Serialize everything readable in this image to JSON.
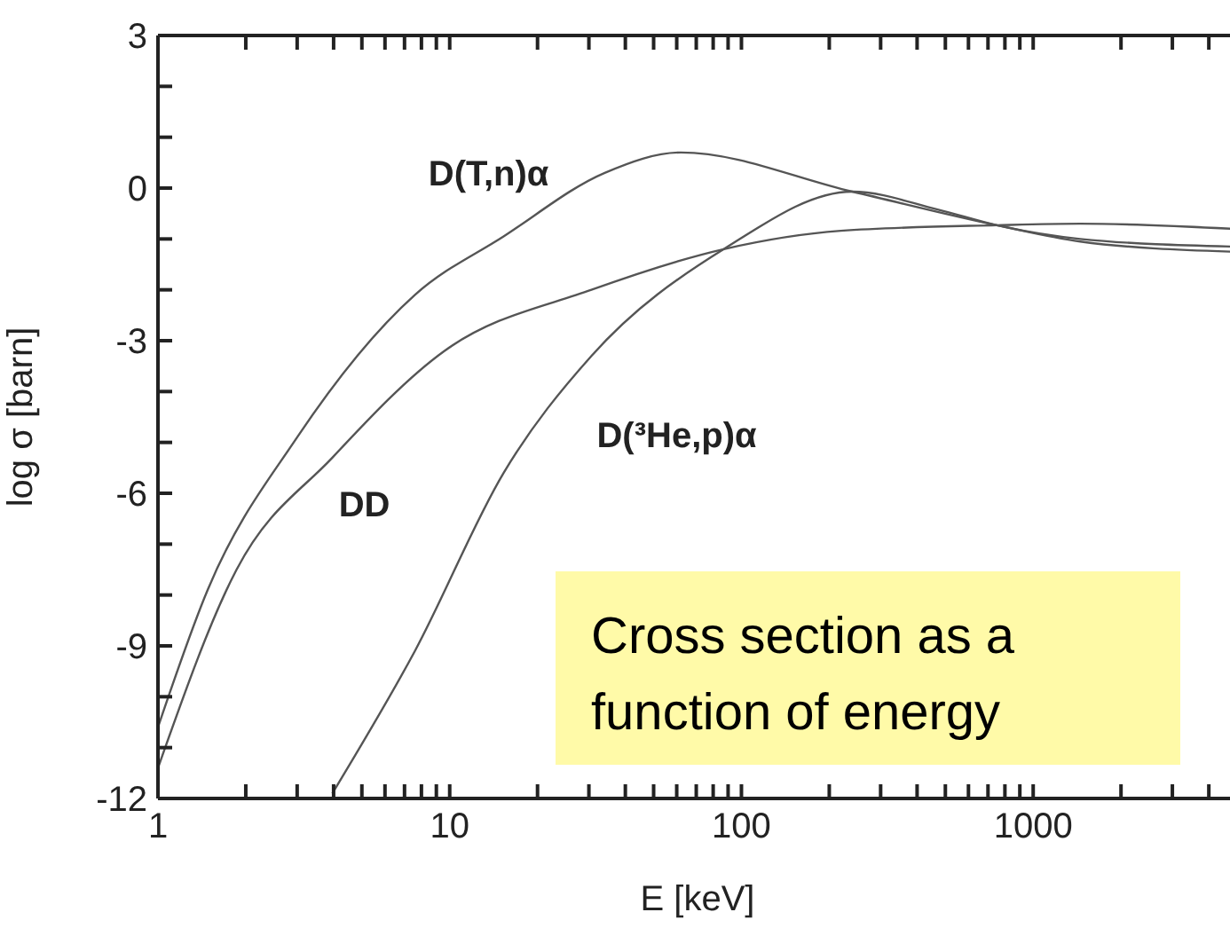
{
  "chart_data": {
    "type": "line",
    "xlabel": "E [keV]",
    "ylabel": "log σ [barn]",
    "log": "x",
    "marker": "none",
    "xlim": [
      1,
      5000
    ],
    "ylim": [
      -12,
      3
    ],
    "xticks": [
      1,
      {
        "value": 2,
        "label": null
      },
      {
        "value": 3,
        "label": null
      },
      {
        "value": 4,
        "label": null
      },
      {
        "value": 5,
        "label": null
      },
      {
        "value": 6,
        "label": null
      },
      {
        "value": 7,
        "label": null
      },
      {
        "value": 8,
        "label": null
      },
      {
        "value": 9,
        "label": null
      },
      10,
      {
        "value": 20,
        "label": null
      },
      {
        "value": 30,
        "label": null
      },
      {
        "value": 40,
        "label": null
      },
      {
        "value": 50,
        "label": null
      },
      {
        "value": 60,
        "label": null
      },
      {
        "value": 70,
        "label": null
      },
      {
        "value": 80,
        "label": null
      },
      {
        "value": 90,
        "label": null
      },
      100,
      {
        "value": 200,
        "label": null
      },
      {
        "value": 300,
        "label": null
      },
      {
        "value": 400,
        "label": null
      },
      {
        "value": 500,
        "label": null
      },
      {
        "value": 600,
        "label": null
      },
      {
        "value": 700,
        "label": null
      },
      {
        "value": 800,
        "label": null
      },
      {
        "value": 900,
        "label": null
      },
      1000,
      {
        "value": 2000,
        "label": null
      },
      {
        "value": 3000,
        "label": null
      },
      {
        "value": 4000,
        "label": null
      }
    ],
    "yticks": [
      -12,
      {
        "value": -11,
        "label": null
      },
      {
        "value": -10,
        "label": null
      },
      -9,
      {
        "value": -8,
        "label": null
      },
      {
        "value": -7,
        "label": null
      },
      -6,
      {
        "value": -5,
        "label": null
      },
      {
        "value": -4,
        "label": null
      },
      -3,
      {
        "value": -2,
        "label": null
      },
      {
        "value": -1,
        "label": null
      },
      0,
      {
        "value": 1,
        "label": null
      },
      {
        "value": 2,
        "label": null
      },
      3
    ],
    "series": [
      {
        "name": "D(T,n)α",
        "color": "#555555",
        "x": [
          1,
          1.48,
          3,
          7.6,
          15.3,
          34,
          62,
          240,
          750,
          1450,
          4800
        ],
        "values": [
          -10.6,
          -7.9,
          -4.9,
          -2.1,
          -0.95,
          0.3,
          0.7,
          -0.07,
          -0.73,
          -1.05,
          -1.25
        ]
      },
      {
        "name": "DD",
        "color": "#555555",
        "x": [
          1,
          1.86,
          3.96,
          9.6,
          30.6,
          87,
          219,
          750,
          1450,
          4800
        ],
        "values": [
          -11.4,
          -7.5,
          -5.3,
          -3.2,
          -2.0,
          -1.2,
          -0.84,
          -0.73,
          -0.7,
          -0.8
        ]
      },
      {
        "name": "D(³He,p)α",
        "color": "#555555",
        "x": [
          3.96,
          7.6,
          15.3,
          30.6,
          87,
          240,
          470,
          750,
          1450,
          4800
        ],
        "values": [
          -11.9,
          -9.1,
          -5.6,
          -3.3,
          -1.2,
          -0.07,
          -0.42,
          -0.73,
          -1.0,
          -1.15
        ]
      }
    ],
    "annotations": [
      "Cross section as a function of energy"
    ]
  }
}
